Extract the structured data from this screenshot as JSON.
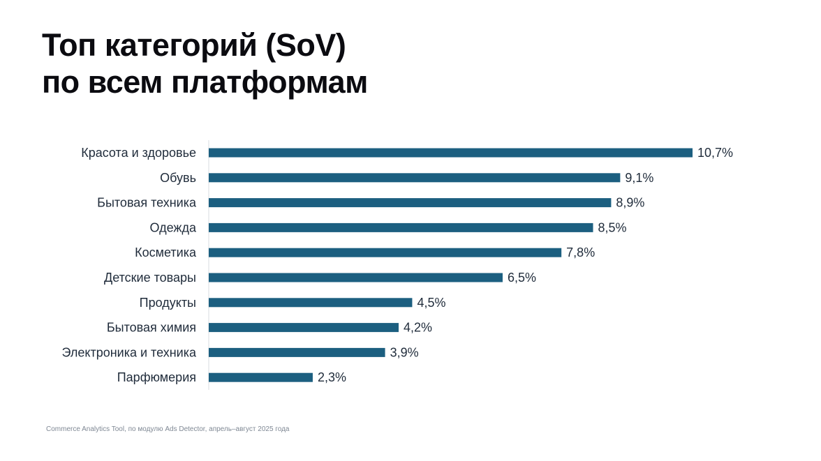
{
  "title": {
    "line1": "Топ категорий (SoV)",
    "line2": "по всем платформам"
  },
  "source": "Commerce Analytics Tool, по модулю Ads Detector, апрель–август 2025 года",
  "colors": {
    "bar": "#1c5f80",
    "axis": "#d9dde2"
  },
  "chart_data": {
    "type": "bar",
    "orientation": "horizontal",
    "title": "Топ категорий (SoV) по всем платформам",
    "xlabel": "",
    "ylabel": "",
    "xlim": [
      0,
      10.7
    ],
    "grid": false,
    "categories": [
      "Красота и здоровье",
      "Обувь",
      "Бытовая техника",
      "Одежда",
      "Косметика",
      "Детские товары",
      "Продукты",
      "Бытовая химия",
      "Электроника и техника",
      "Парфюмерия"
    ],
    "values": [
      10.7,
      9.1,
      8.9,
      8.5,
      7.8,
      6.5,
      4.5,
      4.2,
      3.9,
      2.3
    ],
    "value_labels": [
      "10,7%",
      "9,1%",
      "8,9%",
      "8,5%",
      "7,8%",
      "6,5%",
      "4,5%",
      "4,2%",
      "3,9%",
      "2,3%"
    ]
  }
}
